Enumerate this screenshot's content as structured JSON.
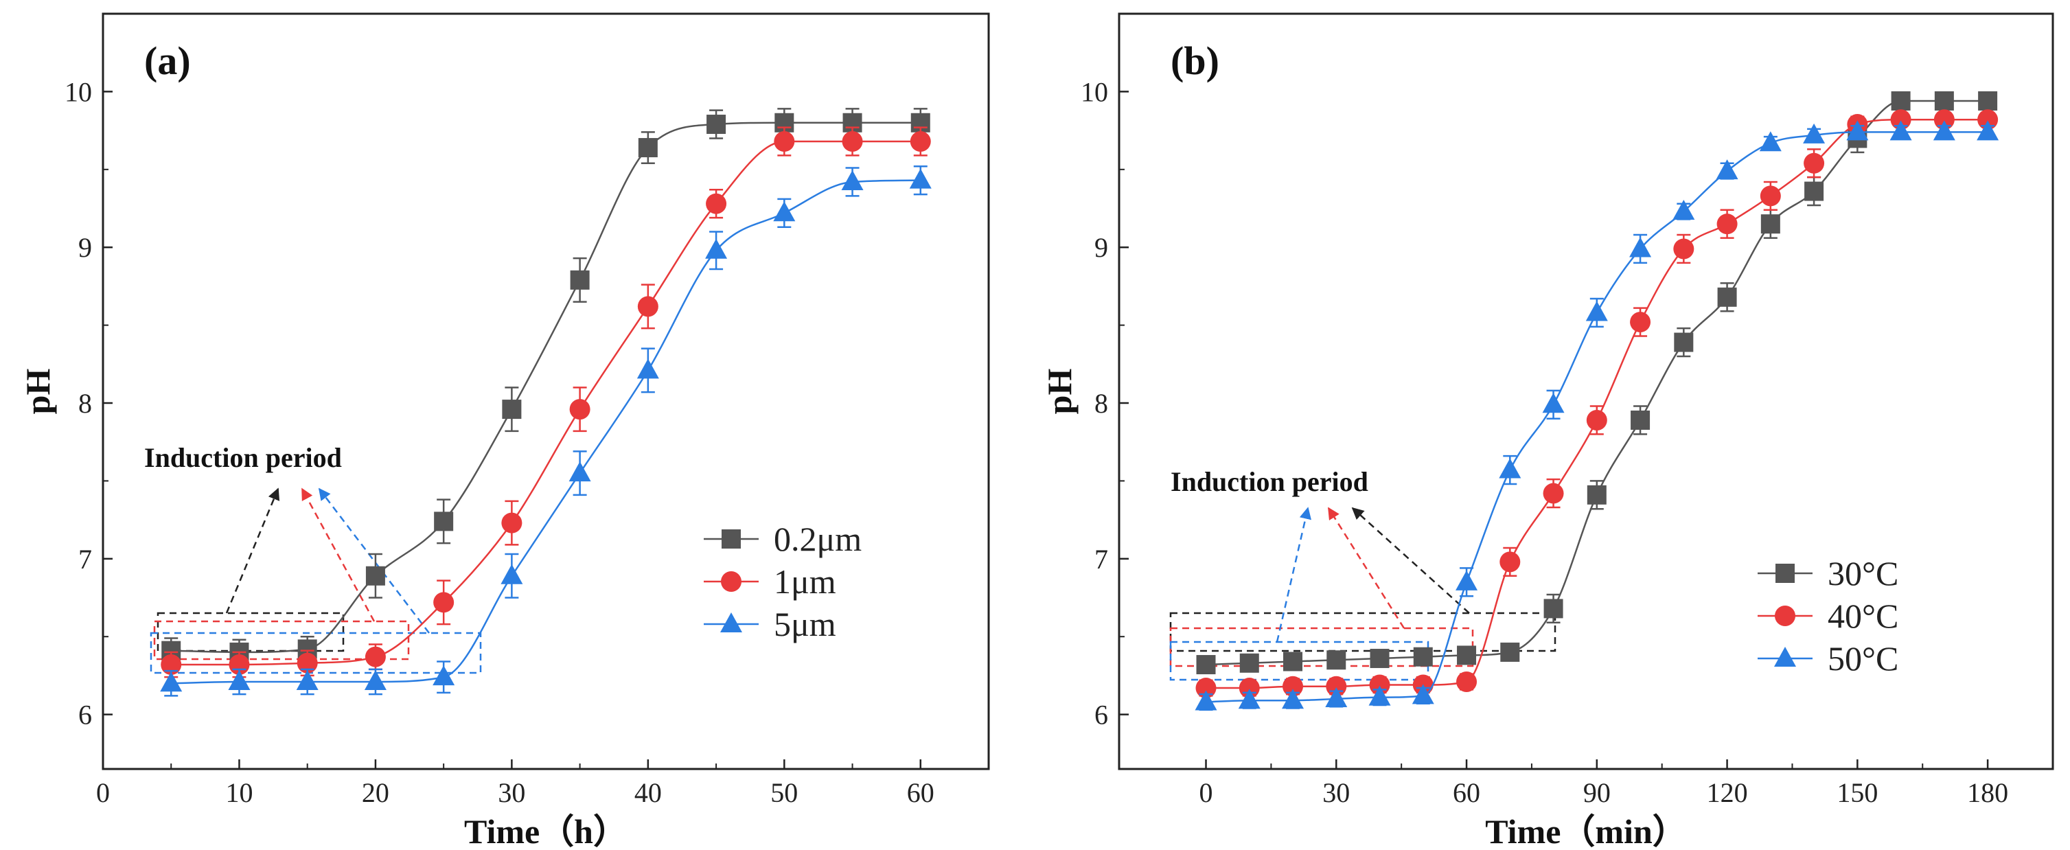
{
  "chart_data": [
    {
      "type": "line",
      "panel_label": "(a)",
      "xlabel": "Time（h）",
      "ylabel": "pH",
      "xlim": [
        0,
        65
      ],
      "ylim": [
        5.65,
        10.5
      ],
      "xticks": [
        0,
        10,
        20,
        30,
        40,
        50,
        60
      ],
      "yticks": [
        6,
        7,
        8,
        9,
        10
      ],
      "x": [
        5,
        10,
        15,
        20,
        25,
        30,
        35,
        40,
        45,
        50,
        55,
        60
      ],
      "series": [
        {
          "name": "0.2μm",
          "color": "#555555",
          "marker": "square",
          "values": [
            6.41,
            6.4,
            6.42,
            6.89,
            7.24,
            7.96,
            8.79,
            9.64,
            9.79,
            9.8,
            9.8,
            9.8
          ],
          "errors": [
            0.08,
            0.08,
            0.08,
            0.14,
            0.14,
            0.14,
            0.14,
            0.1,
            0.09,
            0.09,
            0.09,
            0.09
          ]
        },
        {
          "name": "1μm",
          "color": "#e8393a",
          "marker": "circle",
          "values": [
            6.32,
            6.32,
            6.33,
            6.37,
            6.72,
            7.23,
            7.96,
            8.62,
            9.28,
            9.68,
            9.68,
            9.68
          ],
          "errors": [
            0.08,
            0.08,
            0.08,
            0.08,
            0.14,
            0.14,
            0.14,
            0.14,
            0.09,
            0.09,
            0.09,
            0.09
          ]
        },
        {
          "name": "5μm",
          "color": "#2a7de1",
          "marker": "triangle",
          "values": [
            6.2,
            6.21,
            6.21,
            6.21,
            6.24,
            6.89,
            7.55,
            8.21,
            8.98,
            9.22,
            9.42,
            9.43
          ],
          "errors": [
            0.08,
            0.08,
            0.08,
            0.08,
            0.1,
            0.14,
            0.14,
            0.14,
            0.12,
            0.09,
            0.09,
            0.09
          ]
        }
      ],
      "annotation": "Induction period",
      "legend_position": "middle-right"
    },
    {
      "type": "line",
      "panel_label": "(b)",
      "xlabel": "Time（min）",
      "ylabel": "pH",
      "xlim": [
        -20,
        195
      ],
      "ylim": [
        5.65,
        10.5
      ],
      "xticks": [
        0,
        30,
        60,
        90,
        120,
        150,
        180
      ],
      "yticks": [
        6,
        7,
        8,
        9,
        10
      ],
      "x": [
        0,
        10,
        20,
        30,
        40,
        50,
        60,
        70,
        80,
        90,
        100,
        110,
        120,
        130,
        140,
        150,
        160,
        170,
        180
      ],
      "series": [
        {
          "name": "30°C",
          "color": "#555555",
          "marker": "square",
          "values": [
            6.32,
            6.33,
            6.34,
            6.35,
            6.36,
            6.37,
            6.38,
            6.4,
            6.68,
            7.41,
            7.89,
            8.39,
            8.68,
            9.15,
            9.36,
            9.7,
            9.94,
            9.94,
            9.94
          ],
          "errors": [
            0.05,
            0.05,
            0.05,
            0.05,
            0.05,
            0.05,
            0.05,
            0.05,
            0.09,
            0.09,
            0.09,
            0.09,
            0.09,
            0.09,
            0.09,
            0.09,
            0.04,
            0.04,
            0.04
          ]
        },
        {
          "name": "40°C",
          "color": "#e8393a",
          "marker": "circle",
          "values": [
            6.17,
            6.17,
            6.18,
            6.18,
            6.19,
            6.19,
            6.21,
            6.98,
            7.42,
            7.89,
            8.52,
            8.99,
            9.15,
            9.33,
            9.54,
            9.79,
            9.82,
            9.82,
            9.82
          ],
          "errors": [
            0.05,
            0.05,
            0.05,
            0.05,
            0.05,
            0.05,
            0.05,
            0.09,
            0.09,
            0.09,
            0.09,
            0.09,
            0.09,
            0.09,
            0.09,
            0.05,
            0.04,
            0.04,
            0.04
          ]
        },
        {
          "name": "50°C",
          "color": "#2a7de1",
          "marker": "triangle",
          "values": [
            6.08,
            6.09,
            6.09,
            6.1,
            6.11,
            6.12,
            6.85,
            7.57,
            7.99,
            8.58,
            8.99,
            9.23,
            9.49,
            9.67,
            9.72,
            9.74,
            9.74,
            9.74,
            9.74
          ],
          "errors": [
            0.05,
            0.05,
            0.05,
            0.05,
            0.05,
            0.05,
            0.09,
            0.09,
            0.09,
            0.09,
            0.09,
            0.05,
            0.05,
            0.04,
            0.04,
            0.04,
            0.04,
            0.04,
            0.04
          ]
        }
      ],
      "annotation": "Induction period",
      "legend_position": "bottom-right"
    }
  ]
}
